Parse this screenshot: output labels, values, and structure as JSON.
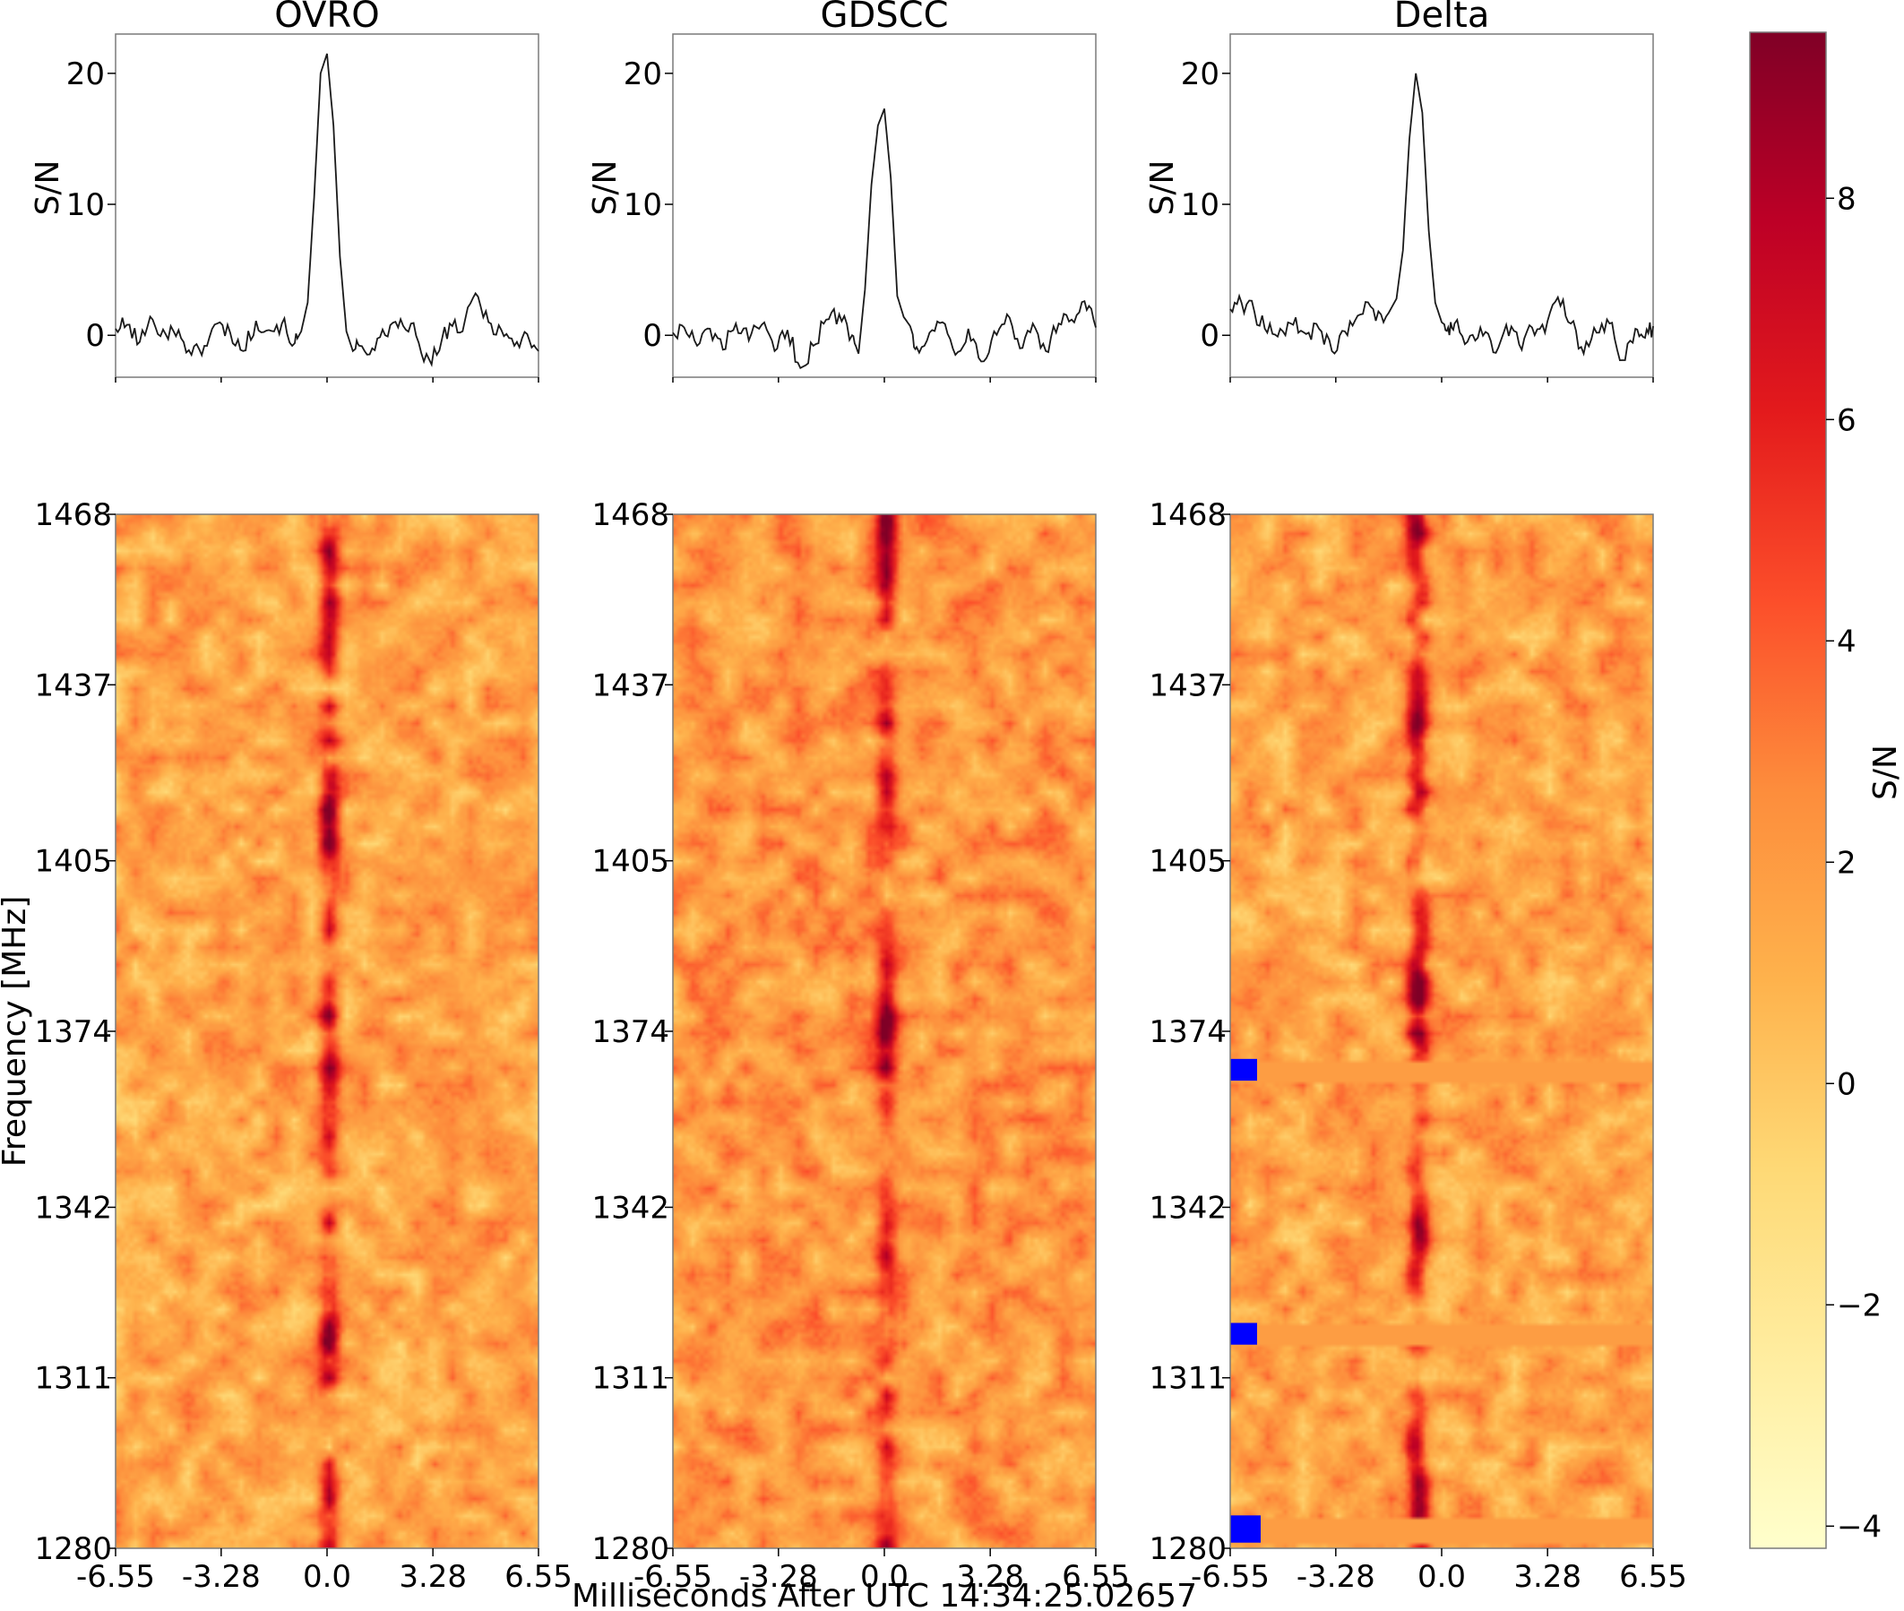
{
  "figure": {
    "xlabel": "Milliseconds After UTC 14:34:25.02657",
    "colorbar": {
      "label": "S/N",
      "ticks": [
        -4,
        -2,
        0,
        2,
        4,
        6,
        8
      ],
      "tick_labels": [
        "−4",
        "−2",
        "0",
        "2",
        "4",
        "6",
        "8"
      ],
      "vmin": -4.2,
      "vmax": 9.5,
      "colormap": "YlOrRd",
      "colors": [
        "#ffffcc",
        "#ffeda0",
        "#fed976",
        "#feb24c",
        "#fd8d3c",
        "#fc4e2a",
        "#e31a1c",
        "#bd0026",
        "#800026"
      ]
    }
  },
  "chart_data": [
    {
      "type": "line",
      "panel": "OVRO",
      "title": "OVRO",
      "xlabel": "",
      "ylabel": "S/N",
      "xlim": [
        -6.55,
        6.55
      ],
      "ylim": [
        -3.2,
        23
      ],
      "yticks": [
        0,
        10,
        20
      ],
      "x": [
        -6.55,
        -6.2,
        -5.8,
        -5.4,
        -5.0,
        -4.6,
        -4.2,
        -3.8,
        -3.4,
        -3.0,
        -2.6,
        -2.2,
        -1.8,
        -1.4,
        -1.0,
        -0.8,
        -0.6,
        -0.4,
        -0.2,
        0.0,
        0.2,
        0.4,
        0.6,
        0.8,
        1.0,
        1.4,
        1.8,
        2.2,
        2.6,
        3.0,
        3.4,
        3.8,
        4.2,
        4.6,
        5.0,
        5.4,
        5.8,
        6.2,
        6.55
      ],
      "series": [
        {
          "values": [
            0.5,
            0.8,
            -0.5,
            1.2,
            0.1,
            0.4,
            -1.5,
            -0.8,
            0.9,
            0.2,
            -1.2,
            1.1,
            0.4,
            0.9,
            -0.6,
            0.3,
            2.5,
            10.5,
            20.0,
            21.5,
            16.0,
            6.0,
            0.3,
            -1.2,
            -0.8,
            -1.0,
            0.0,
            0.6,
            0.9,
            -2.0,
            -1.5,
            0.9,
            0.3,
            3.2,
            1.0,
            0.4,
            -0.8,
            0.1,
            -1.2
          ]
        }
      ]
    },
    {
      "type": "line",
      "panel": "GDSCC",
      "title": "GDSCC",
      "xlabel": "",
      "ylabel": "S/N",
      "xlim": [
        -6.55,
        6.55
      ],
      "ylim": [
        -3.2,
        23
      ],
      "yticks": [
        0,
        10,
        20
      ],
      "x": [
        -6.55,
        -6.2,
        -5.8,
        -5.4,
        -5.0,
        -4.6,
        -4.2,
        -3.8,
        -3.4,
        -3.0,
        -2.6,
        -2.2,
        -1.8,
        -1.4,
        -1.0,
        -0.8,
        -0.6,
        -0.4,
        -0.2,
        0.0,
        0.2,
        0.4,
        0.6,
        0.8,
        1.0,
        1.4,
        1.8,
        2.2,
        2.6,
        3.0,
        3.4,
        3.8,
        4.2,
        4.6,
        5.0,
        5.4,
        5.8,
        6.2,
        6.55
      ],
      "series": [
        {
          "values": [
            0.2,
            0.6,
            -0.8,
            0.5,
            -1.1,
            0.9,
            -0.4,
            0.8,
            -1.2,
            0.4,
            -2.5,
            -0.8,
            1.2,
            1.6,
            0.0,
            -1.4,
            3.5,
            11.5,
            16.0,
            17.3,
            12.0,
            3.0,
            1.4,
            0.7,
            -0.9,
            0.2,
            1.0,
            -1.5,
            0.5,
            -2.0,
            0.3,
            1.6,
            -1.0,
            0.9,
            -1.2,
            0.9,
            1.2,
            2.6,
            0.6
          ]
        }
      ]
    },
    {
      "type": "line",
      "panel": "Delta",
      "title": "Delta",
      "xlabel": "",
      "ylabel": "S/N",
      "xlim": [
        -6.55,
        6.55
      ],
      "ylim": [
        -3.2,
        23
      ],
      "yticks": [
        0,
        10,
        20
      ],
      "x": [
        -6.55,
        -6.2,
        -5.8,
        -5.4,
        -5.0,
        -4.6,
        -4.2,
        -3.8,
        -3.4,
        -3.0,
        -2.6,
        -2.2,
        -1.8,
        -1.4,
        -1.2,
        -1.0,
        -0.8,
        -0.6,
        -0.4,
        -0.2,
        0.0,
        0.2,
        0.4,
        0.8,
        1.2,
        1.6,
        2.0,
        2.4,
        2.8,
        3.2,
        3.6,
        4.0,
        4.4,
        4.8,
        5.2,
        5.6,
        6.0,
        6.3,
        6.55
      ],
      "series": [
        {
          "values": [
            2.0,
            2.5,
            1.8,
            0.2,
            0.5,
            0.8,
            0.1,
            0.5,
            -1.2,
            0.3,
            1.5,
            2.2,
            1.0,
            2.8,
            6.5,
            15.0,
            20.0,
            17.0,
            8.0,
            2.5,
            1.0,
            0.6,
            0.9,
            -0.5,
            0.6,
            -1.3,
            0.8,
            -0.7,
            0.6,
            0.2,
            2.9,
            0.9,
            -1.4,
            0.2,
            0.9,
            -1.9,
            0.5,
            -0.2,
            0.7
          ]
        }
      ]
    },
    {
      "type": "heatmap",
      "panel": "OVRO",
      "xlabel": "",
      "ylabel": "Frequency [MHz]",
      "xlim": [
        -6.55,
        6.55
      ],
      "ylim": [
        1280,
        1468
      ],
      "xticks": [
        -6.55,
        -3.28,
        0.0,
        3.28,
        6.55
      ],
      "yticks": [
        1468,
        1437,
        1405,
        1374,
        1342,
        1311,
        1280
      ],
      "burst_time_ms": 0.0,
      "burst_peak_sn": 8.5,
      "background_sn": 1.5,
      "masked_channels_mhz": []
    },
    {
      "type": "heatmap",
      "panel": "GDSCC",
      "xlabel": "",
      "ylabel": "",
      "xlim": [
        -6.55,
        6.55
      ],
      "ylim": [
        1280,
        1468
      ],
      "xticks": [
        -6.55,
        -3.28,
        0.0,
        3.28,
        6.55
      ],
      "yticks": [
        1468,
        1437,
        1405,
        1374,
        1342,
        1311,
        1280
      ],
      "burst_time_ms": 0.0,
      "burst_peak_sn": 7.5,
      "background_sn": 2.0,
      "masked_channels_mhz": []
    },
    {
      "type": "heatmap",
      "panel": "Delta",
      "xlabel": "",
      "ylabel": "",
      "xlim": [
        -6.55,
        6.55
      ],
      "ylim": [
        1280,
        1468
      ],
      "xticks": [
        -6.55,
        -3.28,
        0.0,
        3.28,
        6.55
      ],
      "yticks": [
        1468,
        1437,
        1405,
        1374,
        1342,
        1311,
        1280
      ],
      "burst_time_ms": -0.8,
      "burst_peak_sn": 8.0,
      "background_sn": 1.6,
      "masked_channels_mhz": [
        [
          1366,
          1368
        ],
        [
          1318,
          1320
        ],
        [
          1282,
          1285
        ]
      ]
    }
  ]
}
